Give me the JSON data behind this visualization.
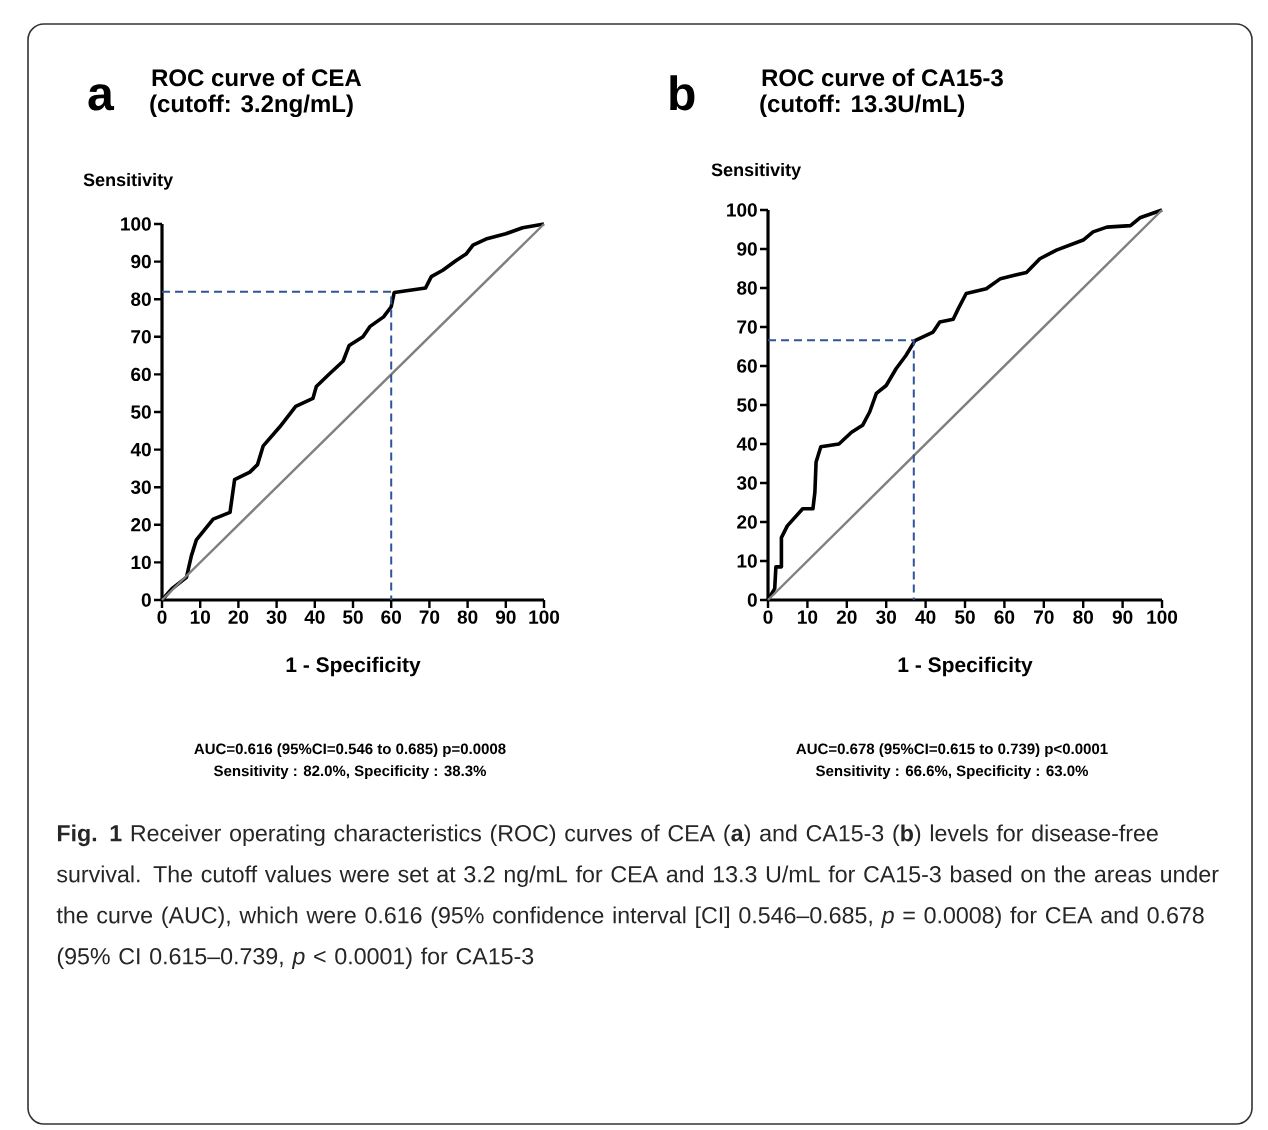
{
  "chart_data": [
    {
      "type": "line",
      "title": "ROC curve of CEA",
      "subtitle": "(cutoff: 3.2ng/mL)",
      "xlabel": "1 - Specificity",
      "ylabel": "Sensitivity",
      "xlim": [
        0,
        100
      ],
      "ylim": [
        0,
        100
      ],
      "xticks": [
        0,
        10,
        20,
        30,
        40,
        50,
        60,
        70,
        80,
        90,
        100
      ],
      "yticks": [
        0,
        10,
        20,
        30,
        40,
        50,
        60,
        70,
        80,
        90,
        100
      ],
      "series": [
        {
          "color": "#000000",
          "x": [
            0,
            2.6,
            6.4,
            7.7,
            9,
            13.4,
            17.8,
            19,
            23,
            25,
            26.5,
            30.8,
            35,
            39.5,
            40.4,
            44,
            47.4,
            49,
            52.6,
            54.4,
            58,
            60,
            60.8,
            69,
            70.5,
            73.5,
            77,
            79.6,
            81.4,
            84.8,
            90,
            94.4,
            100
          ],
          "values": [
            0,
            3,
            6,
            11.8,
            16,
            21.5,
            23.3,
            32,
            34,
            36,
            41,
            46,
            51.5,
            53.6,
            56.8,
            60.3,
            63.5,
            67.7,
            70,
            72.7,
            75.3,
            78,
            81.8,
            83,
            86,
            87.7,
            90.3,
            92,
            94.4,
            96,
            97.4,
            99,
            100
          ]
        },
        {
          "color": "#7f7f7f",
          "x": [
            0,
            100
          ],
          "values": [
            0,
            100
          ]
        },
        {
          "color": "#2f5597",
          "line_style": "dashed",
          "x": [
            0,
            60,
            60
          ],
          "values": [
            82,
            82,
            0
          ]
        }
      ],
      "annotations": [
        "a",
        "AUC=0.616 (95%CI=0.546 to 0.685)  p=0.0008",
        "Sensitivity : 82.0%, Specificity : 38.3%"
      ]
    },
    {
      "type": "line",
      "title": "ROC curve of CA15-3",
      "subtitle": "(cutoff: 13.3U/mL)",
      "xlabel": "1 - Specificity",
      "ylabel": "Sensitivity",
      "xlim": [
        0,
        100
      ],
      "ylim": [
        0,
        100
      ],
      "xticks": [
        0,
        10,
        20,
        30,
        40,
        50,
        60,
        70,
        80,
        90,
        100
      ],
      "yticks": [
        0,
        10,
        20,
        30,
        40,
        50,
        60,
        70,
        80,
        90,
        100
      ],
      "series": [
        {
          "color": "#000000",
          "x": [
            0,
            1.7,
            2,
            3.4,
            3.4,
            4.9,
            8.8,
            11.4,
            11.9,
            12.2,
            13.4,
            18,
            21.2,
            24,
            25.8,
            27.5,
            30,
            32.5,
            35,
            37.3,
            41.9,
            43.6,
            47,
            48.3,
            50.3,
            55.4,
            59,
            65.6,
            69,
            73.2,
            80,
            82.5,
            86,
            92,
            94.4,
            100
          ],
          "values": [
            0,
            2.9,
            8.5,
            8.5,
            16,
            19,
            23.4,
            23.4,
            27.7,
            35.4,
            39.3,
            40,
            43,
            44.8,
            48.2,
            53,
            55,
            59.3,
            62.7,
            66.5,
            68.7,
            71.3,
            72,
            74.7,
            78.6,
            79.8,
            82.4,
            84,
            87.5,
            89.7,
            92.3,
            94.4,
            95.6,
            96,
            98,
            100
          ]
        },
        {
          "color": "#7f7f7f",
          "x": [
            0,
            100
          ],
          "values": [
            0,
            100
          ]
        },
        {
          "color": "#2f5597",
          "line_style": "dashed",
          "x": [
            0,
            37,
            37
          ],
          "values": [
            66.6,
            66.6,
            0
          ]
        }
      ],
      "annotations": [
        "b",
        "AUC=0.678 (95%CI=0.615 to 0.739)  p<0.0001",
        "Sensitivity : 66.6%, Specificity : 63.0%",
        "**Fig. 1** Receiver operating characteristics (ROC) curves of CEA (**a**) and CA15-3 (**b**) levels for disease-free survival. The cutoff values were set at 3.2 ng/mL for CEA and 13.3 U/mL for CA15-3 based on the areas under the curve (AUC), which were 0.616 (95% confidence interval [CI] 0.546–0.685, *p* = 0.0008) for CEA and 0.678 (95% CI 0.615–0.739, *p* < 0.0001) for CA15-3"
      ]
    }
  ]
}
